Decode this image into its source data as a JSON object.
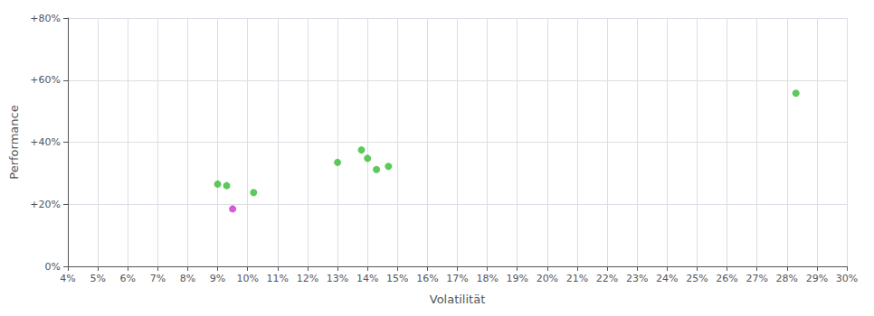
{
  "chart_data": {
    "type": "scatter",
    "xlabel": "Volatilität",
    "ylabel": "Performance",
    "xlim": [
      0.04,
      0.3
    ],
    "ylim": [
      0.0,
      0.8
    ],
    "xticks": [
      {
        "value": 0.04,
        "label": "4%"
      },
      {
        "value": 0.05,
        "label": "5%"
      },
      {
        "value": 0.06,
        "label": "6%"
      },
      {
        "value": 0.07,
        "label": "7%"
      },
      {
        "value": 0.08,
        "label": "8%"
      },
      {
        "value": 0.09,
        "label": "9%"
      },
      {
        "value": 0.1,
        "label": "10%"
      },
      {
        "value": 0.11,
        "label": "11%"
      },
      {
        "value": 0.12,
        "label": "12%"
      },
      {
        "value": 0.13,
        "label": "13%"
      },
      {
        "value": 0.14,
        "label": "14%"
      },
      {
        "value": 0.15,
        "label": "15%"
      },
      {
        "value": 0.16,
        "label": "16%"
      },
      {
        "value": 0.17,
        "label": "17%"
      },
      {
        "value": 0.18,
        "label": "18%"
      },
      {
        "value": 0.19,
        "label": "19%"
      },
      {
        "value": 0.2,
        "label": "20%"
      },
      {
        "value": 0.21,
        "label": "21%"
      },
      {
        "value": 0.22,
        "label": "22%"
      },
      {
        "value": 0.23,
        "label": "23%"
      },
      {
        "value": 0.24,
        "label": "24%"
      },
      {
        "value": 0.25,
        "label": "25%"
      },
      {
        "value": 0.26,
        "label": "26%"
      },
      {
        "value": 0.27,
        "label": "27%"
      },
      {
        "value": 0.28,
        "label": "28%"
      },
      {
        "value": 0.29,
        "label": "29%"
      },
      {
        "value": 0.3,
        "label": "30%"
      }
    ],
    "yticks": [
      {
        "value": 0.0,
        "label": "0%"
      },
      {
        "value": 0.2,
        "label": "+20%"
      },
      {
        "value": 0.4,
        "label": "+40%"
      },
      {
        "value": 0.6,
        "label": "+60%"
      },
      {
        "value": 0.8,
        "label": "+80%"
      }
    ],
    "grid": true,
    "series": [
      {
        "color": "#33bb33",
        "x": [
          0.09,
          0.093,
          0.102,
          0.13,
          0.138,
          0.14,
          0.143,
          0.147,
          0.283
        ],
        "values": [
          0.265,
          0.26,
          0.238,
          0.335,
          0.375,
          0.348,
          0.312,
          0.322,
          0.558
        ]
      },
      {
        "color": "#cc33cc",
        "x": [
          0.095
        ],
        "values": [
          0.185
        ]
      }
    ]
  }
}
